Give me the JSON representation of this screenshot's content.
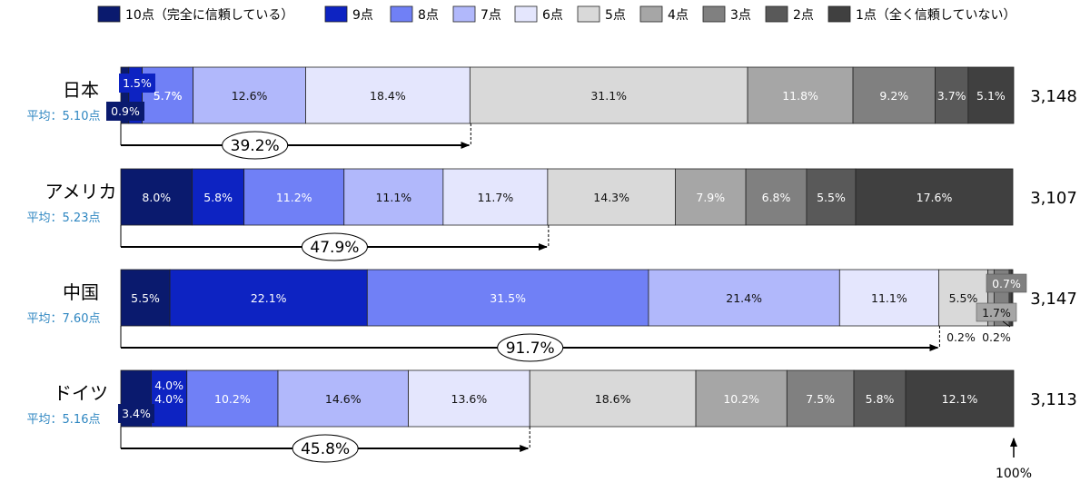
{
  "chart_data": {
    "type": "bar",
    "orientation": "horizontal-stacked-100",
    "legend_position": "top",
    "legend": [
      {
        "label": "10点（完全に信頼している）",
        "color": "#0a1a6e"
      },
      {
        "label": "9点",
        "color": "#0d23c2"
      },
      {
        "label": "8点",
        "color": "#7080f6"
      },
      {
        "label": "7点",
        "color": "#b1b8fb"
      },
      {
        "label": "6点",
        "color": "#e4e6fd"
      },
      {
        "label": "5点",
        "color": "#d9d9d9"
      },
      {
        "label": "4点",
        "color": "#a6a6a6"
      },
      {
        "label": "3点",
        "color": "#808080"
      },
      {
        "label": "2点",
        "color": "#595959"
      },
      {
        "label": "1点（全く信頼していない）",
        "color": "#404040"
      }
    ],
    "rows": [
      {
        "country": "日本",
        "average": "平均：5.10点",
        "n": "3,148",
        "values": [
          0.9,
          1.5,
          5.7,
          12.6,
          18.4,
          31.1,
          11.8,
          9.2,
          3.7,
          5.1
        ],
        "cumulative_label": "39.2%",
        "cumulative_value": 39.2
      },
      {
        "country": "アメリカ",
        "average": "平均：5.23点",
        "n": "3,107",
        "values": [
          8.0,
          5.8,
          11.2,
          11.1,
          11.7,
          14.3,
          7.9,
          6.8,
          5.5,
          17.6
        ],
        "cumulative_label": "47.9%",
        "cumulative_value": 47.9
      },
      {
        "country": "中国",
        "average": "平均：7.60点",
        "n": "3,147",
        "values": [
          5.5,
          22.1,
          31.5,
          21.4,
          11.1,
          5.5,
          0.7,
          1.7,
          0.2,
          0.2
        ],
        "cumulative_label": "91.7%",
        "cumulative_value": 91.7
      },
      {
        "country": "ドイツ",
        "average": "平均：5.16点",
        "n": "3,113",
        "values": [
          3.4,
          4.0,
          10.2,
          14.6,
          13.6,
          18.6,
          10.2,
          7.5,
          5.8,
          12.1
        ],
        "cumulative_label": "45.8%",
        "cumulative_value": 45.8
      }
    ],
    "xlim": [
      0,
      100
    ],
    "end_marker_label": "100%"
  }
}
